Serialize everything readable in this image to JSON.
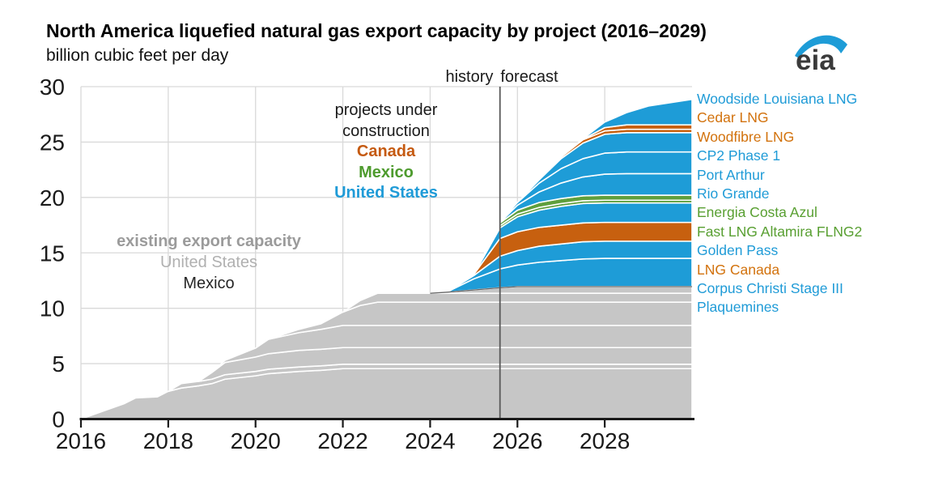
{
  "title": "North America liquefied natural gas export capacity by project (2016–2029)",
  "subtitle": "billion cubic feet per day",
  "logo": {
    "text": "eia",
    "swoosh_color": "#1E9CD7",
    "text_color": "#3a3a3a"
  },
  "annotations": {
    "history_forecast": {
      "history": "history",
      "forecast": "forecast"
    },
    "construction": {
      "line1": "projects under",
      "line2": "construction",
      "canada": "Canada",
      "mexico": "Mexico",
      "united_states": "United States",
      "canada_color": "#C55A11",
      "mexico_color": "#4E9B2E",
      "united_states_color": "#1F9BD7"
    },
    "existing": {
      "line1": "existing export capacity",
      "line2": "United States",
      "line3": "Mexico",
      "line1_color": "#9B9B9B",
      "line2_color": "#B0B0B0",
      "line3_color": "#262626"
    }
  },
  "colors": {
    "us_blue": "#1E9CD7",
    "canada_orange": "#C7600F",
    "mexico_green": "#5F9F3D",
    "existing_gray": "#C6C6C6",
    "grid": "#D9D9D9",
    "history_line": "#595959",
    "axis": "#1a1a1a"
  },
  "chart_data": {
    "type": "area",
    "stacked": true,
    "title": "North America liquefied natural gas export capacity by project (2016–2029)",
    "ylabel": "billion cubic feet per day",
    "xlim": [
      2016,
      2030
    ],
    "ylim": [
      0,
      30
    ],
    "x_ticks": [
      2016,
      2018,
      2020,
      2022,
      2024,
      2026,
      2028
    ],
    "y_ticks": [
      0,
      5,
      10,
      15,
      20,
      25,
      30
    ],
    "grid": true,
    "legend_position": "right",
    "history_line_x": 2025.6,
    "existing_top_edge_from_x": 2024,
    "x": [
      2016,
      2016.5,
      2017,
      2017.25,
      2017.75,
      2018,
      2018.3,
      2018.7,
      2019,
      2019.3,
      2020,
      2020.3,
      2021,
      2021.5,
      2022,
      2022.4,
      2022.8,
      2024,
      2024.4,
      2025,
      2025.6,
      2026,
      2026.5,
      2027,
      2027.5,
      2028,
      2028.5,
      2029,
      2030
    ],
    "series": [
      {
        "name": "existing-1",
        "label": null,
        "color": "#C6C6C6",
        "values": [
          0,
          0.7,
          1.4,
          1.9,
          2,
          2.5,
          2.8,
          3,
          3.2,
          3.6,
          3.9,
          4.1,
          4.3,
          4.4,
          4.55,
          4.55,
          4.55,
          4.55,
          4.55,
          4.55,
          4.55,
          4.55,
          4.55,
          4.55,
          4.55,
          4.55,
          4.55,
          4.55,
          4.55
        ]
      },
      {
        "name": "existing-2",
        "label": null,
        "color": "#C6C6C6",
        "values": [
          0,
          0,
          0,
          0,
          0,
          0,
          0.4,
          0.4,
          0.4,
          0.4,
          0.4,
          0.4,
          0.4,
          0.4,
          0.4,
          0.4,
          0.4,
          0.4,
          0.4,
          0.4,
          0.4,
          0.4,
          0.4,
          0.4,
          0.4,
          0.4,
          0.4,
          0.4,
          0.4
        ]
      },
      {
        "name": "existing-3",
        "label": null,
        "color": "#C6C6C6",
        "values": [
          0,
          0,
          0,
          0,
          0,
          0,
          0,
          0,
          0.6,
          1.1,
          1.3,
          1.4,
          1.5,
          1.5,
          1.5,
          1.5,
          1.5,
          1.5,
          1.5,
          1.5,
          1.5,
          1.5,
          1.5,
          1.5,
          1.5,
          1.5,
          1.5,
          1.5,
          1.5
        ]
      },
      {
        "name": "existing-4",
        "label": null,
        "color": "#C6C6C6",
        "values": [
          0,
          0,
          0,
          0,
          0,
          0,
          0,
          0,
          0,
          0.2,
          0.8,
          1.3,
          1.6,
          1.8,
          2,
          2,
          2,
          2,
          2,
          2,
          2,
          2,
          2,
          2,
          2,
          2,
          2,
          2,
          2
        ]
      },
      {
        "name": "existing-5",
        "label": null,
        "color": "#C6C6C6",
        "values": [
          0,
          0,
          0,
          0,
          0,
          0,
          0,
          0,
          0,
          0,
          0,
          0,
          0.3,
          0.5,
          1.2,
          1.8,
          2.1,
          2.1,
          2.1,
          2.1,
          2.1,
          2.1,
          2.1,
          2.1,
          2.1,
          2.1,
          2.1,
          2.1,
          2.1
        ]
      },
      {
        "name": "existing-6",
        "label": null,
        "color": "#C6C6C6",
        "values": [
          0,
          0,
          0,
          0,
          0,
          0,
          0,
          0,
          0,
          0,
          0,
          0,
          0,
          0,
          0,
          0.45,
          0.8,
          0.8,
          0.8,
          0.8,
          0.8,
          0.8,
          0.8,
          0.8,
          0.8,
          0.8,
          0.8,
          0.8,
          0.8
        ]
      },
      {
        "name": "existing-7",
        "label": null,
        "color": "#C6C6C6",
        "values": [
          0,
          0,
          0,
          0,
          0,
          0,
          0,
          0,
          0,
          0,
          0,
          0,
          0,
          0,
          0,
          0,
          0,
          0,
          0.1,
          0.3,
          0.5,
          0.6,
          0.6,
          0.6,
          0.6,
          0.6,
          0.6,
          0.6,
          0.6
        ]
      },
      {
        "name": "plaquemines",
        "label": "Plaquemines",
        "color": "#1E9CD7",
        "legend_color": "#1F9BD7",
        "values": [
          0,
          0,
          0,
          0,
          0,
          0,
          0,
          0,
          0,
          0,
          0,
          0,
          0,
          0,
          0,
          0,
          0,
          0,
          0.05,
          1,
          1.7,
          1.95,
          2.2,
          2.35,
          2.5,
          2.55,
          2.55,
          2.55,
          2.55
        ]
      },
      {
        "name": "corpus-christi-stage-3",
        "label": "Corpus Christi Stage III",
        "color": "#1E9CD7",
        "legend_color": "#1F9BD7",
        "values": [
          0,
          0,
          0,
          0,
          0,
          0,
          0,
          0,
          0,
          0,
          0,
          0,
          0,
          0,
          0,
          0,
          0,
          0,
          0,
          0.3,
          1.15,
          1.3,
          1.45,
          1.5,
          1.55,
          1.55,
          1.55,
          1.55,
          1.55
        ]
      },
      {
        "name": "lng-canada",
        "label": "LNG Canada",
        "color": "#C7600F",
        "legend_color": "#D2720D",
        "values": [
          0,
          0,
          0,
          0,
          0,
          0,
          0,
          0,
          0,
          0,
          0,
          0,
          0,
          0,
          0,
          0,
          0,
          0,
          0,
          0.1,
          1.6,
          1.7,
          1.7,
          1.7,
          1.7,
          1.7,
          1.7,
          1.7,
          1.7
        ]
      },
      {
        "name": "golden-pass",
        "label": "Golden Pass",
        "color": "#1E9CD7",
        "legend_color": "#1F9BD7",
        "values": [
          0,
          0,
          0,
          0,
          0,
          0,
          0,
          0,
          0,
          0,
          0,
          0,
          0,
          0,
          0,
          0,
          0,
          0,
          0,
          0,
          0.95,
          1.35,
          1.55,
          1.7,
          1.75,
          1.75,
          1.75,
          1.75,
          1.75
        ]
      },
      {
        "name": "fast-lng-altamira-flng2",
        "label": "Fast LNG Altamira FLNG2",
        "color": "#5F9F3D",
        "legend_color": "#589F31",
        "values": [
          0,
          0,
          0,
          0,
          0,
          0,
          0,
          0,
          0,
          0,
          0,
          0,
          0,
          0,
          0,
          0,
          0,
          0,
          0,
          0,
          0.2,
          0.25,
          0.25,
          0.25,
          0.25,
          0.25,
          0.25,
          0.25,
          0.25
        ]
      },
      {
        "name": "energia-costa-azul",
        "label": "Energia Costa Azul",
        "color": "#5F9F3D",
        "legend_color": "#589F31",
        "values": [
          0,
          0,
          0,
          0,
          0,
          0,
          0,
          0,
          0,
          0,
          0,
          0,
          0,
          0,
          0,
          0,
          0,
          0,
          0,
          0,
          0.25,
          0.35,
          0.45,
          0.45,
          0.45,
          0.45,
          0.45,
          0.45,
          0.45
        ]
      },
      {
        "name": "rio-grande",
        "label": "Rio Grande",
        "color": "#1E9CD7",
        "legend_color": "#1F9BD7",
        "values": [
          0,
          0,
          0,
          0,
          0,
          0,
          0,
          0,
          0,
          0,
          0,
          0,
          0,
          0,
          0,
          0,
          0,
          0,
          0,
          0,
          0.05,
          0.45,
          0.95,
          1.4,
          1.7,
          1.9,
          1.95,
          1.95,
          1.95
        ]
      },
      {
        "name": "port-arthur",
        "label": "Port Arthur",
        "color": "#1E9CD7",
        "legend_color": "#1F9BD7",
        "values": [
          0,
          0,
          0,
          0,
          0,
          0,
          0,
          0,
          0,
          0,
          0,
          0,
          0,
          0,
          0,
          0,
          0,
          0,
          0,
          0,
          0,
          0.25,
          0.8,
          1.3,
          1.65,
          1.9,
          1.95,
          1.95,
          1.95
        ]
      },
      {
        "name": "cp2-phase-1",
        "label": "CP2 Phase 1",
        "color": "#1E9CD7",
        "legend_color": "#1F9BD7",
        "values": [
          0,
          0,
          0,
          0,
          0,
          0,
          0,
          0,
          0,
          0,
          0,
          0,
          0,
          0,
          0,
          0,
          0,
          0,
          0,
          0,
          0,
          0,
          0.3,
          0.9,
          1.4,
          1.7,
          1.75,
          1.75,
          1.75
        ]
      },
      {
        "name": "woodfibre-lng",
        "label": "Woodfibre LNG",
        "color": "#C7600F",
        "legend_color": "#D2720D",
        "values": [
          0,
          0,
          0,
          0,
          0,
          0,
          0,
          0,
          0,
          0,
          0,
          0,
          0,
          0,
          0,
          0,
          0,
          0,
          0,
          0,
          0,
          0,
          0.05,
          0.15,
          0.3,
          0.3,
          0.3,
          0.3,
          0.3
        ]
      },
      {
        "name": "cedar-lng",
        "label": "Cedar LNG",
        "color": "#C7600F",
        "legend_color": "#D2720D",
        "values": [
          0,
          0,
          0,
          0,
          0,
          0,
          0,
          0,
          0,
          0,
          0,
          0,
          0,
          0,
          0,
          0,
          0,
          0,
          0,
          0,
          0,
          0,
          0,
          0,
          0.05,
          0.3,
          0.4,
          0.4,
          0.4
        ]
      },
      {
        "name": "woodside-louisiana-lng",
        "label": "Woodside Louisiana LNG",
        "color": "#1E9CD7",
        "legend_color": "#1F9BD7",
        "values": [
          0,
          0,
          0,
          0,
          0,
          0,
          0,
          0,
          0,
          0,
          0,
          0,
          0,
          0,
          0,
          0,
          0,
          0,
          0,
          0,
          0,
          0,
          0,
          0,
          0.05,
          0.5,
          1.1,
          1.7,
          2.3
        ]
      }
    ]
  }
}
